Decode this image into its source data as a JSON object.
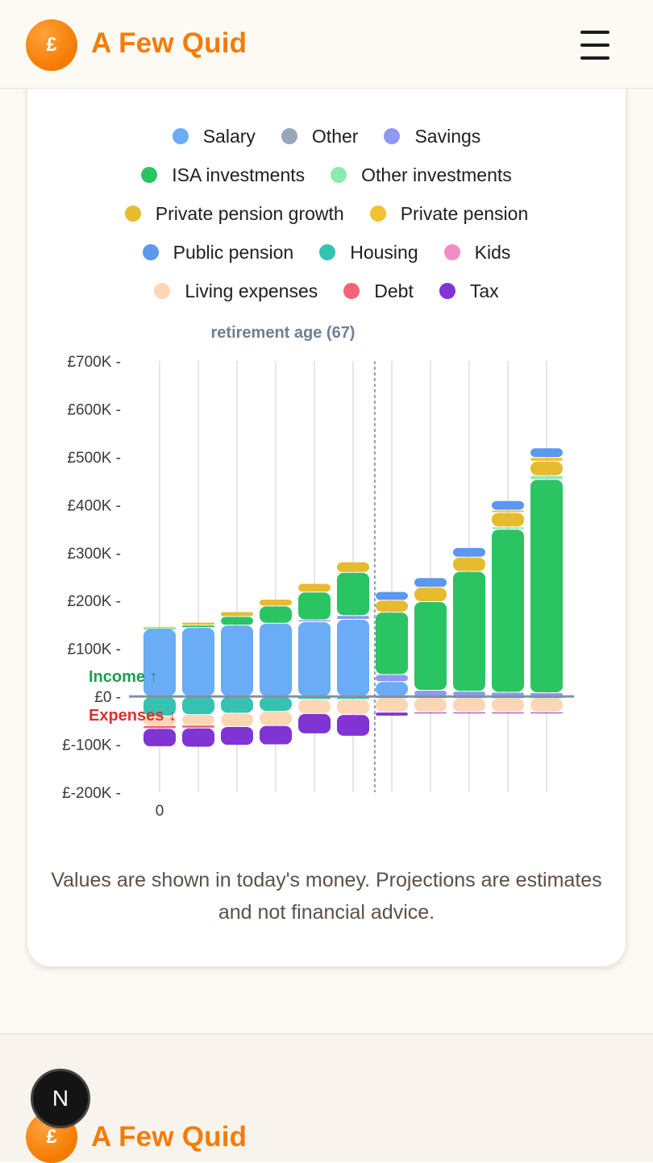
{
  "header": {
    "brand": "A Few Quid",
    "logo_symbol": "£",
    "menu_icon": "hamburger-menu-icon"
  },
  "footer": {
    "brand": "A Few Quid",
    "logo_symbol": "£",
    "badge_letter": "N"
  },
  "footnote": "Values are shown in today's money. Projections are estimates and not financial advice.",
  "legend": [
    [
      {
        "label": "Salary",
        "color": "#6aacf5"
      },
      {
        "label": "Other",
        "color": "#98a6bb"
      },
      {
        "label": "Savings",
        "color": "#8f99f0"
      }
    ],
    [
      {
        "label": "ISA investments",
        "color": "#2bc463"
      },
      {
        "label": "Other investments",
        "color": "#8ceab0"
      }
    ],
    [
      {
        "label": "Private pension growth",
        "color": "#e6bb30"
      },
      {
        "label": "Private pension",
        "color": "#f2c230"
      }
    ],
    [
      {
        "label": "Public pension",
        "color": "#5c97f0"
      },
      {
        "label": "Housing",
        "color": "#35c2b1"
      },
      {
        "label": "Kids",
        "color": "#f48cc4"
      }
    ],
    [
      {
        "label": "Living expenses",
        "color": "#fdd6b5"
      },
      {
        "label": "Debt",
        "color": "#f2637a"
      },
      {
        "label": "Tax",
        "color": "#8034d4"
      }
    ]
  ],
  "chart_data": {
    "type": "bar",
    "stacked": true,
    "x_tick_labels": [
      "0"
    ],
    "yticks": [
      "£700K",
      "£600K",
      "£500K",
      "£400K",
      "£300K",
      "£200K",
      "£100K",
      "£0",
      "£-100K",
      "£-200K"
    ],
    "ylim": [
      -200000,
      700000
    ],
    "retirement_marker": {
      "label": "retirement age (67)",
      "after_bar_index": 5
    },
    "income_label": "Income ↑",
    "expenses_label": "Expenses ↓",
    "income_series": [
      {
        "name": "Salary",
        "color": "#6aacf5",
        "values": [
          140000,
          143000,
          148000,
          152000,
          155000,
          160000,
          30000,
          0,
          0,
          0,
          0
        ]
      },
      {
        "name": "Savings",
        "color": "#8f99f0",
        "values": [
          0,
          0,
          0,
          0,
          4000,
          8000,
          15000,
          12000,
          10000,
          8000,
          7000
        ]
      },
      {
        "name": "ISA investments",
        "color": "#2bc463",
        "values": [
          2000,
          5000,
          18000,
          36000,
          58000,
          90000,
          130000,
          185000,
          250000,
          340000,
          445000
        ]
      },
      {
        "name": "Other investments",
        "color": "#8ceab0",
        "values": [
          0,
          0,
          0,
          0,
          0,
          0,
          0,
          0,
          0,
          5000,
          8000
        ]
      },
      {
        "name": "Private pension growth",
        "color": "#e6bb30",
        "values": [
          3000,
          6000,
          10000,
          14000,
          18000,
          22000,
          25000,
          30000,
          30000,
          30000,
          30000
        ]
      },
      {
        "name": "Private pension",
        "color": "#f2c230",
        "values": [
          0,
          0,
          0,
          0,
          0,
          0,
          0,
          0,
          0,
          5000,
          8000
        ]
      },
      {
        "name": "Public pension",
        "color": "#5c97f0",
        "values": [
          0,
          0,
          0,
          0,
          0,
          0,
          18000,
          20000,
          20000,
          20000,
          20000
        ]
      }
    ],
    "expense_series": [
      {
        "name": "Housing",
        "color": "#35c2b1",
        "values": [
          40000,
          37000,
          34000,
          30000,
          5000,
          5000,
          2000,
          2000,
          2000,
          2000,
          2000
        ]
      },
      {
        "name": "Living expenses",
        "color": "#fdd6b5",
        "values": [
          20000,
          22000,
          28000,
          30000,
          30000,
          32000,
          30000,
          30000,
          30000,
          30000,
          30000
        ]
      },
      {
        "name": "Debt",
        "color": "#f2637a",
        "values": [
          6000,
          6000,
          0,
          0,
          0,
          0,
          0,
          0,
          0,
          0,
          0
        ]
      },
      {
        "name": "Tax",
        "color": "#8034d4",
        "values": [
          38000,
          40000,
          39000,
          40000,
          42000,
          45000,
          8000,
          3000,
          3000,
          3000,
          3000
        ]
      }
    ]
  }
}
